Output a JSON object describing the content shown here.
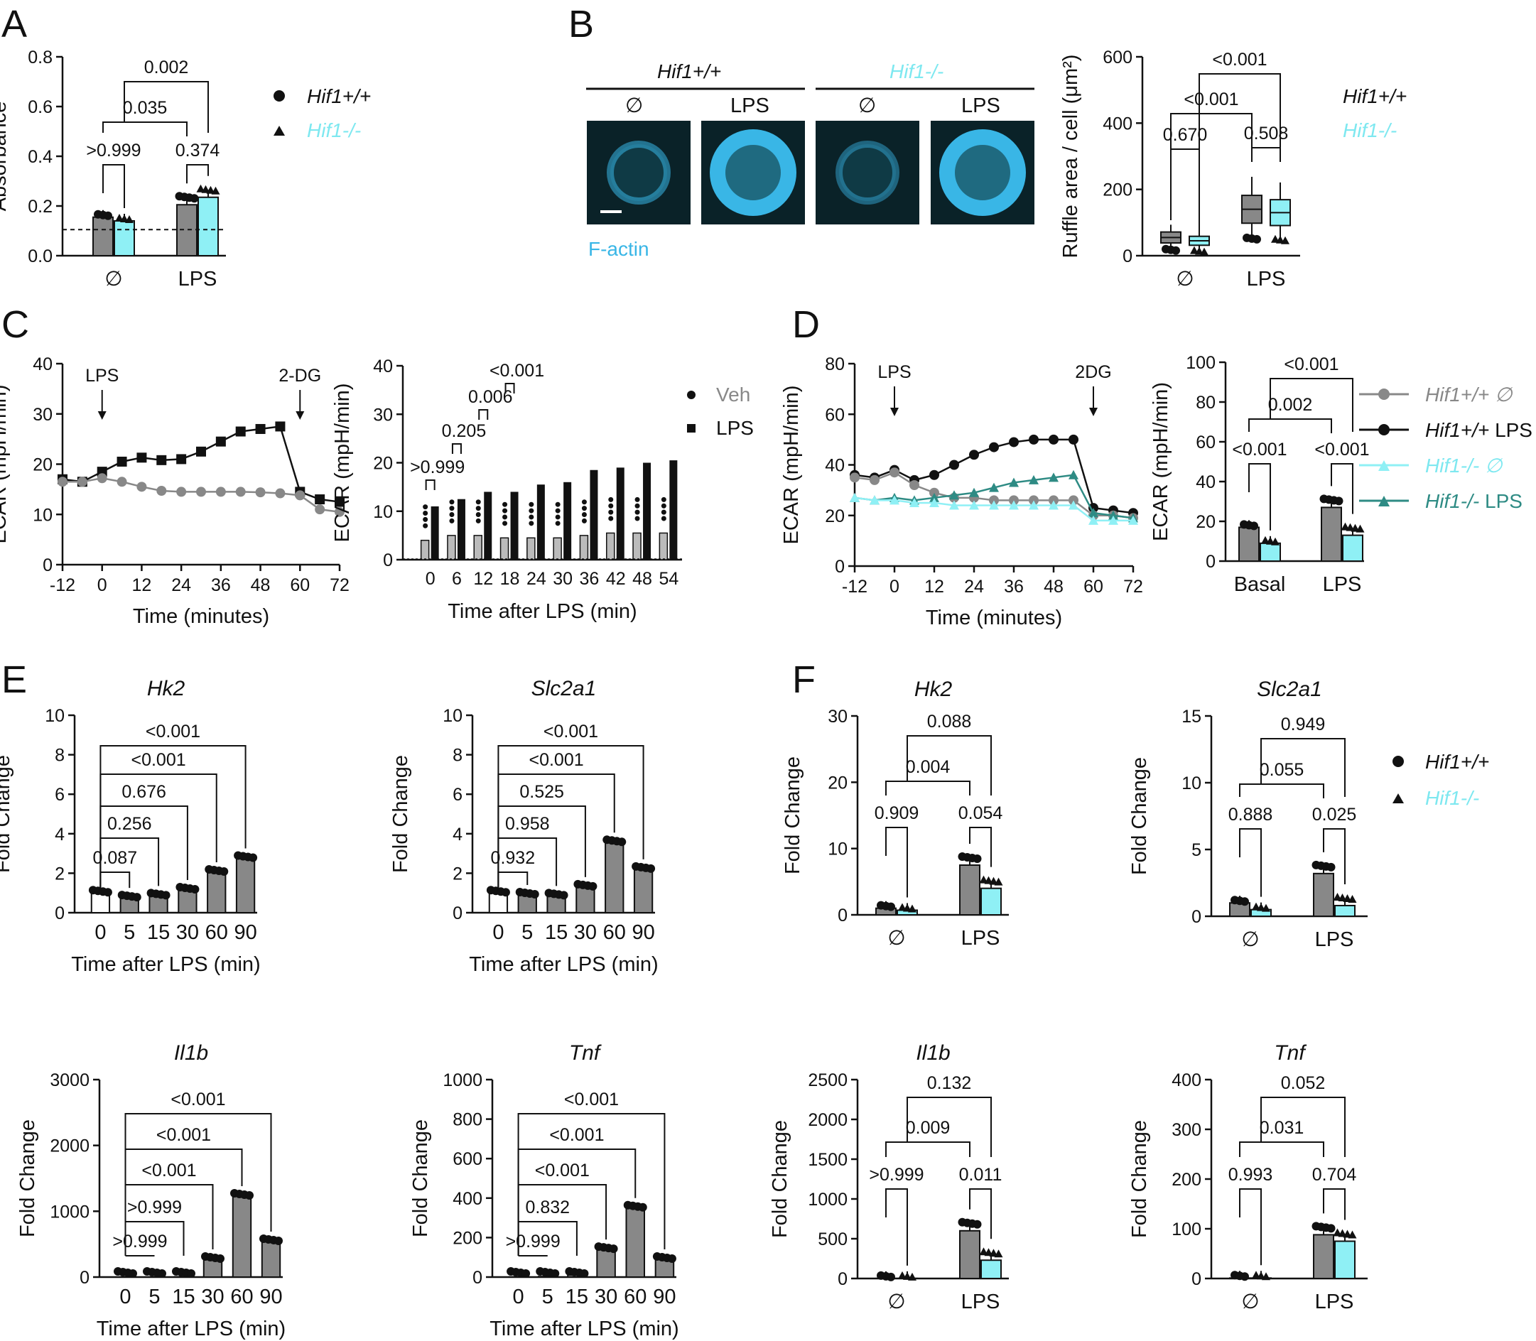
{
  "colors": {
    "wt": "#888888",
    "ko": "#8ff0f5",
    "wt_text": "#111111",
    "ko_text": "#7ee8f0",
    "veh": "#999999",
    "lps": "#111111",
    "ko_lps": "#2e8b84",
    "factin": "#39b6e6"
  },
  "panels": {
    "A": "A",
    "B": "B",
    "C": "C",
    "D": "D",
    "E": "E",
    "F": "F"
  },
  "legend": {
    "wt": "Hif1+/+",
    "ko": "Hif1-/-",
    "veh": "Veh",
    "lps": "LPS",
    "d_wt_null": "Hif1+/+ ∅",
    "d_wt_lps_g": "Hif1+/+",
    "d_lps": "LPS",
    "d_ko_null": "Hif1-/- ∅",
    "d_ko_lps_g": "Hif1-/-"
  },
  "microscopy": {
    "wt": "Hif1+/+",
    "ko": "Hif1-/-",
    "null": "∅",
    "lps": "LPS",
    "stain": "F-actin"
  },
  "chart_data": [
    {
      "id": "A",
      "type": "bar",
      "categories": [
        "∅",
        "LPS"
      ],
      "ylabel": "Absorbance",
      "ylim": [
        0,
        0.8
      ],
      "yticks": [
        "0.0",
        "0.2",
        "0.4",
        "0.6",
        "0.8"
      ],
      "series": [
        {
          "name": "Hif1+/+",
          "values": [
            0.155,
            0.205
          ]
        },
        {
          "name": "Hif1-/-",
          "values": [
            0.14,
            0.235
          ]
        }
      ],
      "baseline": 0.105,
      "pvalues": [
        ">0.999",
        "0.374",
        "0.035",
        "0.002"
      ]
    },
    {
      "id": "B",
      "type": "box",
      "categories": [
        "∅",
        "LPS"
      ],
      "ylabel": "Ruffle area / cell (μm²)",
      "ylim": [
        0,
        600
      ],
      "yticks": [
        "0",
        "200",
        "400",
        "600"
      ],
      "series": [
        {
          "name": "Hif1+/+",
          "median": [
            55,
            140
          ]
        },
        {
          "name": "Hif1-/-",
          "median": [
            45,
            130
          ]
        }
      ],
      "pvalues": [
        "0.670",
        "0.508",
        "<0.001",
        "<0.001"
      ]
    },
    {
      "id": "C1",
      "type": "line",
      "xlabel": "Time (minutes)",
      "ylabel": "ECAR (mpH/min)",
      "ylim": [
        0,
        40
      ],
      "yticks": [
        "0",
        "10",
        "20",
        "30",
        "40"
      ],
      "xticks": [
        "-12",
        "0",
        "12",
        "24",
        "36",
        "48",
        "60",
        "72"
      ],
      "x": [
        -12,
        -6,
        0,
        6,
        12,
        18,
        24,
        30,
        36,
        42,
        48,
        54,
        60,
        66,
        72
      ],
      "series": [
        {
          "name": "LPS",
          "values": [
            17,
            16.5,
            18.5,
            20.5,
            21.3,
            20.8,
            21,
            22.5,
            24.5,
            26.5,
            27,
            27.5,
            14.5,
            13,
            12.5
          ]
        },
        {
          "name": "Veh",
          "values": [
            16.5,
            16.5,
            17.2,
            16.5,
            15.5,
            14.7,
            14.5,
            14.5,
            14.5,
            14.5,
            14.4,
            14.2,
            13.8,
            11,
            10.5
          ]
        }
      ],
      "annotations": [
        "LPS",
        "2-DG"
      ]
    },
    {
      "id": "C2",
      "type": "bar",
      "xlabel": "Time after LPS (min)",
      "ylabel": "ECAR (mpH/min)",
      "ylim": [
        0,
        40
      ],
      "yticks": [
        "0",
        "10",
        "20",
        "30",
        "40"
      ],
      "categories": [
        "0",
        "6",
        "12",
        "18",
        "24",
        "30",
        "36",
        "42",
        "48",
        "54"
      ],
      "series": [
        {
          "name": "Veh",
          "values": [
            4,
            5,
            5,
            4.5,
            4.5,
            4.5,
            5,
            5.5,
            5.5,
            5.5
          ]
        },
        {
          "name": "LPS",
          "values": [
            11,
            12.5,
            14,
            14,
            15.5,
            16,
            18.5,
            19,
            20,
            20.5
          ]
        }
      ],
      "pvalues": [
        ">0.999",
        "0.205",
        "0.006",
        "<0.001"
      ]
    },
    {
      "id": "D1",
      "type": "line",
      "xlabel": "Time (minutes)",
      "ylabel": "ECAR (mpH/min)",
      "ylim": [
        0,
        80
      ],
      "yticks": [
        "0",
        "20",
        "40",
        "60",
        "80"
      ],
      "xticks": [
        "-12",
        "0",
        "12",
        "24",
        "36",
        "48",
        "60",
        "72"
      ],
      "x": [
        -12,
        -6,
        0,
        6,
        12,
        18,
        24,
        30,
        36,
        42,
        48,
        54,
        60,
        66,
        72
      ],
      "series": [
        {
          "name": "Hif1+/+ LPS",
          "values": [
            36,
            35,
            38,
            34,
            36,
            40,
            44,
            47,
            49,
            50,
            50,
            50,
            23,
            22,
            21
          ]
        },
        {
          "name": "Hif1+/+ ∅",
          "values": [
            35,
            34,
            37,
            32,
            29,
            27,
            27,
            26,
            26,
            26,
            26,
            26,
            20,
            20,
            19
          ]
        },
        {
          "name": "Hif1-/- LPS",
          "values": [
            27,
            26,
            27,
            26,
            27,
            28,
            29,
            31,
            33,
            34,
            35,
            36,
            21,
            20,
            19
          ]
        },
        {
          "name": "Hif1-/- ∅",
          "values": [
            27,
            26,
            26,
            25,
            25,
            24,
            24,
            24,
            24,
            24,
            24,
            24,
            18,
            18,
            18
          ]
        }
      ],
      "annotations": [
        "LPS",
        "2DG"
      ]
    },
    {
      "id": "D2",
      "type": "bar",
      "categories": [
        "Basal",
        "LPS"
      ],
      "ylabel": "ECAR (mpH/min)",
      "ylim": [
        0,
        100
      ],
      "yticks": [
        "0",
        "20",
        "40",
        "60",
        "80",
        "100"
      ],
      "series": [
        {
          "name": "Hif1+/+",
          "values": [
            17,
            27
          ]
        },
        {
          "name": "Hif1-/-",
          "values": [
            9,
            13
          ]
        }
      ],
      "pvalues": [
        "<0.001",
        "<0.001",
        "0.002",
        "<0.001"
      ]
    },
    {
      "id": "E1",
      "type": "bar",
      "title": "Hk2",
      "xlabel": "Time after LPS (min)",
      "ylabel": "Fold Change",
      "ylim": [
        0,
        10
      ],
      "yticks": [
        "0",
        "2",
        "4",
        "6",
        "8",
        "10"
      ],
      "categories": [
        "0",
        "5",
        "15",
        "30",
        "60",
        "90"
      ],
      "values": [
        1,
        0.75,
        0.85,
        1.15,
        2.05,
        2.75
      ],
      "pvalues": [
        "0.087",
        "0.256",
        "0.676",
        "<0.001",
        "<0.001"
      ]
    },
    {
      "id": "E2",
      "type": "bar",
      "title": "Slc2a1",
      "xlabel": "Time after LPS (min)",
      "ylabel": "Fold Change",
      "ylim": [
        0,
        10
      ],
      "yticks": [
        "0",
        "2",
        "4",
        "6",
        "8",
        "10"
      ],
      "categories": [
        "0",
        "5",
        "15",
        "30",
        "60",
        "90"
      ],
      "values": [
        1,
        0.9,
        0.85,
        1.3,
        3.55,
        2.2
      ],
      "pvalues": [
        "0.932",
        "0.958",
        "0.525",
        "<0.001",
        "<0.001"
      ]
    },
    {
      "id": "E3",
      "type": "bar",
      "title": "Il1b",
      "xlabel": "Time after LPS (min)",
      "ylabel": "Fold Change",
      "ylim": [
        0,
        3000
      ],
      "yticks": [
        "0",
        "1000",
        "2000",
        "3000"
      ],
      "categories": [
        "0",
        "5",
        "15",
        "30",
        "60",
        "90"
      ],
      "values": [
        1,
        1,
        5,
        270,
        1230,
        540
      ],
      "pvalues": [
        ">0.999",
        ">0.999",
        "<0.001",
        "<0.001",
        "<0.001"
      ]
    },
    {
      "id": "E4",
      "type": "bar",
      "title": "Tnf",
      "xlabel": "Time after LPS (min)",
      "ylabel": "Fold Change",
      "ylim": [
        0,
        1000
      ],
      "yticks": [
        "0",
        "200",
        "400",
        "600",
        "800",
        "1000"
      ],
      "categories": [
        "0",
        "5",
        "15",
        "30",
        "60",
        "90"
      ],
      "values": [
        1,
        3,
        10,
        140,
        350,
        90
      ],
      "pvalues": [
        ">0.999",
        "0.832",
        "<0.001",
        "<0.001",
        "<0.001"
      ]
    },
    {
      "id": "F1",
      "type": "bar",
      "title": "Hk2",
      "ylabel": "Fold Change",
      "ylim": [
        0,
        30
      ],
      "yticks": [
        "0",
        "10",
        "20",
        "30"
      ],
      "categories": [
        "∅",
        "LPS"
      ],
      "series": [
        {
          "name": "Hif1+/+",
          "values": [
            1,
            7.5
          ]
        },
        {
          "name": "Hif1-/-",
          "values": [
            0.7,
            4
          ]
        }
      ],
      "pvalues": [
        "0.909",
        "0.054",
        "0.004",
        "0.088"
      ]
    },
    {
      "id": "F2",
      "type": "bar",
      "title": "Slc2a1",
      "ylabel": "Fold Change",
      "ylim": [
        0,
        15
      ],
      "yticks": [
        "0",
        "5",
        "10",
        "15"
      ],
      "categories": [
        "∅",
        "LPS"
      ],
      "series": [
        {
          "name": "Hif1+/+",
          "values": [
            1,
            3.2
          ]
        },
        {
          "name": "Hif1-/-",
          "values": [
            0.5,
            0.8
          ]
        }
      ],
      "pvalues": [
        "0.888",
        "0.025",
        "0.055",
        "0.949"
      ]
    },
    {
      "id": "F3",
      "type": "bar",
      "title": "Il1b",
      "ylabel": "Fold Change",
      "ylim": [
        0,
        2500
      ],
      "yticks": [
        "0",
        "500",
        "1000",
        "1500",
        "2000",
        "2500"
      ],
      "categories": [
        "∅",
        "LPS"
      ],
      "series": [
        {
          "name": "Hif1+/+",
          "values": [
            1,
            600
          ]
        },
        {
          "name": "Hif1-/-",
          "values": [
            1,
            230
          ]
        }
      ],
      "pvalues": [
        ">0.999",
        "0.011",
        "0.009",
        "0.132"
      ]
    },
    {
      "id": "F4",
      "type": "bar",
      "title": "Tnf",
      "ylabel": "Fold Change",
      "ylim": [
        0,
        400
      ],
      "yticks": [
        "0",
        "100",
        "200",
        "300",
        "400"
      ],
      "categories": [
        "∅",
        "LPS"
      ],
      "series": [
        {
          "name": "Hif1+/+",
          "values": [
            1,
            88
          ]
        },
        {
          "name": "Hif1-/-",
          "values": [
            1,
            75
          ]
        }
      ],
      "pvalues": [
        "0.993",
        "0.704",
        "0.031",
        "0.052"
      ]
    }
  ]
}
